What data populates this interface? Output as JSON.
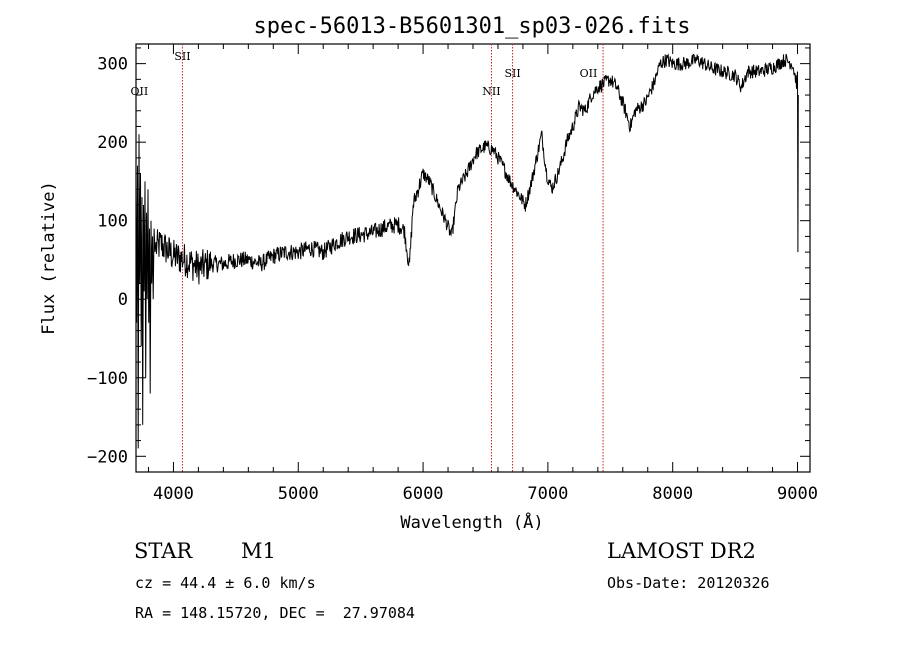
{
  "chart_data": {
    "type": "line",
    "title": "spec-56013-B5601301_sp03-026.fits",
    "xlabel": "Wavelength (Å)",
    "ylabel": "Flux (relative)",
    "xlim": [
      3700,
      9100
    ],
    "ylim": [
      -220,
      325
    ],
    "x_ticks": [
      4000,
      5000,
      6000,
      7000,
      8000,
      9000
    ],
    "y_ticks": [
      -200,
      -100,
      0,
      100,
      200,
      300
    ],
    "grid": false,
    "legend": "none",
    "line_color": "#000000",
    "marker_color": "#cc2222",
    "spectrum_anchors": [
      [
        3740,
        70
      ],
      [
        3800,
        60
      ],
      [
        3900,
        70
      ],
      [
        4000,
        55
      ],
      [
        4100,
        50
      ],
      [
        4200,
        40
      ],
      [
        4300,
        45
      ],
      [
        4400,
        45
      ],
      [
        4500,
        50
      ],
      [
        4600,
        50
      ],
      [
        4700,
        45
      ],
      [
        4800,
        55
      ],
      [
        4900,
        60
      ],
      [
        5000,
        60
      ],
      [
        5100,
        65
      ],
      [
        5200,
        60
      ],
      [
        5300,
        72
      ],
      [
        5400,
        80
      ],
      [
        5500,
        82
      ],
      [
        5600,
        85
      ],
      [
        5700,
        92
      ],
      [
        5800,
        95
      ],
      [
        5850,
        88
      ],
      [
        5890,
        40
      ],
      [
        5920,
        120
      ],
      [
        6000,
        160
      ],
      [
        6050,
        150
      ],
      [
        6100,
        130
      ],
      [
        6180,
        100
      ],
      [
        6230,
        80
      ],
      [
        6280,
        140
      ],
      [
        6350,
        160
      ],
      [
        6420,
        185
      ],
      [
        6500,
        195
      ],
      [
        6563,
        190
      ],
      [
        6620,
        175
      ],
      [
        6700,
        150
      ],
      [
        6780,
        130
      ],
      [
        6820,
        120
      ],
      [
        6870,
        150
      ],
      [
        6950,
        210
      ],
      [
        6990,
        160
      ],
      [
        7030,
        140
      ],
      [
        7080,
        160
      ],
      [
        7120,
        180
      ],
      [
        7150,
        200
      ],
      [
        7200,
        220
      ],
      [
        7250,
        245
      ],
      [
        7300,
        240
      ],
      [
        7350,
        260
      ],
      [
        7400,
        270
      ],
      [
        7450,
        275
      ],
      [
        7500,
        280
      ],
      [
        7550,
        270
      ],
      [
        7600,
        250
      ],
      [
        7660,
        220
      ],
      [
        7700,
        240
      ],
      [
        7780,
        250
      ],
      [
        7850,
        275
      ],
      [
        7900,
        300
      ],
      [
        7950,
        305
      ],
      [
        8000,
        300
      ],
      [
        8100,
        300
      ],
      [
        8200,
        305
      ],
      [
        8300,
        295
      ],
      [
        8400,
        290
      ],
      [
        8500,
        285
      ],
      [
        8550,
        270
      ],
      [
        8600,
        290
      ],
      [
        8700,
        290
      ],
      [
        8800,
        295
      ],
      [
        8900,
        305
      ],
      [
        8960,
        300
      ],
      [
        9000,
        270
      ]
    ],
    "blue_end_noise_anchors": [
      [
        3700,
        150
      ],
      [
        3705,
        -30
      ],
      [
        3712,
        170
      ],
      [
        3718,
        -190
      ],
      [
        3724,
        210
      ],
      [
        3730,
        20
      ],
      [
        3736,
        160
      ],
      [
        3742,
        -60
      ],
      [
        3748,
        130
      ],
      [
        3754,
        -160
      ],
      [
        3760,
        120
      ],
      [
        3766,
        10
      ],
      [
        3772,
        150
      ],
      [
        3778,
        -100
      ],
      [
        3784,
        110
      ],
      [
        3790,
        0
      ],
      [
        3796,
        140
      ],
      [
        3802,
        -30
      ],
      [
        3808,
        90
      ],
      [
        3814,
        -120
      ],
      [
        3820,
        100
      ],
      [
        3826,
        20
      ],
      [
        3832,
        80
      ],
      [
        3838,
        0
      ],
      [
        3845,
        90
      ],
      [
        3852,
        60
      ]
    ],
    "red_end_drop": [
      [
        9000,
        290
      ],
      [
        9003,
        60
      ],
      [
        9006,
        260
      ]
    ],
    "emission_lines": [
      {
        "name": "OII",
        "wavelength": 3727
      },
      {
        "name": "SII",
        "wavelength": 4072
      },
      {
        "name": "NII",
        "wavelength": 6548
      },
      {
        "name": "SII",
        "wavelength": 6717
      },
      {
        "name": "OII",
        "wavelength": 7325
      }
    ],
    "marked_line_positions": [
      4072,
      6548,
      6717,
      7442
    ]
  },
  "info": {
    "object_class": "STAR",
    "subclass": "M1",
    "survey": "LAMOST DR2",
    "redshift_line": "cz = 44.4 ± 6.0 km/s",
    "obs_date_line": "Obs-Date: 20120326",
    "coords_line": "RA = 148.15720, DEC =  27.97084"
  }
}
